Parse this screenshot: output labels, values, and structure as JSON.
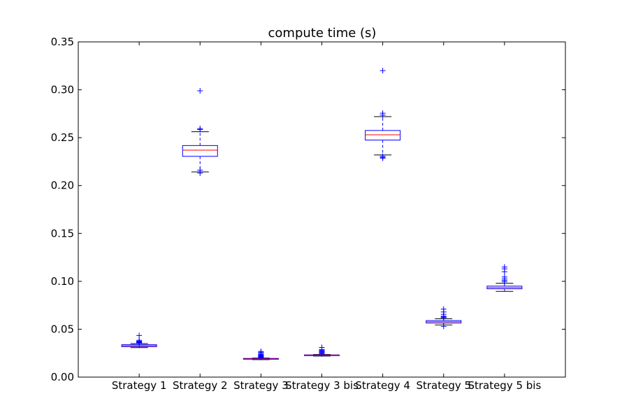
{
  "chart_data": {
    "type": "box",
    "title": "compute time (s)",
    "xlabel": "",
    "ylabel": "",
    "ylim": [
      0.0,
      0.35
    ],
    "yticks": [
      "0.00",
      "0.05",
      "0.10",
      "0.15",
      "0.20",
      "0.25",
      "0.30",
      "0.35"
    ],
    "grid": false,
    "colors": {
      "box": "#0000ff",
      "median": "#ff0000",
      "cap": "#000000",
      "flier": "#0000ff"
    },
    "categories": [
      "Strategy 1",
      "Strategy 2",
      "Strategy 3",
      "Strategy 3 bis",
      "Strategy 4",
      "Strategy 5",
      "Strategy 5 bis"
    ],
    "boxes": [
      {
        "label": "Strategy 1",
        "whisker_low": 0.0308,
        "q1": 0.0318,
        "median": 0.0328,
        "q3": 0.0338,
        "whisker_high": 0.035,
        "outliers": [
          0.0352,
          0.0355,
          0.0358,
          0.0362,
          0.0368,
          0.0375,
          0.0385,
          0.0435
        ]
      },
      {
        "label": "Strategy 2",
        "whisker_low": 0.2143,
        "q1": 0.2305,
        "median": 0.237,
        "q3": 0.2418,
        "whisker_high": 0.2562,
        "outliers": [
          0.213,
          0.216,
          0.2585,
          0.2595,
          0.299
        ]
      },
      {
        "label": "Strategy 3",
        "whisker_low": 0.0182,
        "q1": 0.0186,
        "median": 0.019,
        "q3": 0.0195,
        "whisker_high": 0.0199,
        "outliers": [
          0.0205,
          0.021,
          0.0215,
          0.0222,
          0.023,
          0.0238,
          0.0248,
          0.0258,
          0.0268
        ]
      },
      {
        "label": "Strategy 3 bis",
        "whisker_low": 0.022,
        "q1": 0.0224,
        "median": 0.0228,
        "q3": 0.0232,
        "whisker_high": 0.0236,
        "outliers": [
          0.0242,
          0.025,
          0.0258,
          0.0265,
          0.0272,
          0.028,
          0.029,
          0.031
        ]
      },
      {
        "label": "Strategy 4",
        "whisker_low": 0.232,
        "q1": 0.2475,
        "median": 0.253,
        "q3": 0.2575,
        "whisker_high": 0.272,
        "outliers": [
          0.2285,
          0.2295,
          0.2305,
          0.2735,
          0.2755,
          0.32
        ]
      },
      {
        "label": "Strategy 5",
        "whisker_low": 0.0545,
        "q1": 0.0565,
        "median": 0.0578,
        "q3": 0.059,
        "whisker_high": 0.061,
        "outliers": [
          0.053,
          0.062,
          0.0628,
          0.0635,
          0.0655,
          0.068,
          0.071
        ]
      },
      {
        "label": "Strategy 5 bis",
        "whisker_low": 0.0895,
        "q1": 0.0922,
        "median": 0.0935,
        "q3": 0.095,
        "whisker_high": 0.098,
        "outliers": [
          0.0995,
          0.101,
          0.1025,
          0.1045,
          0.11,
          0.113,
          0.115
        ]
      }
    ]
  }
}
